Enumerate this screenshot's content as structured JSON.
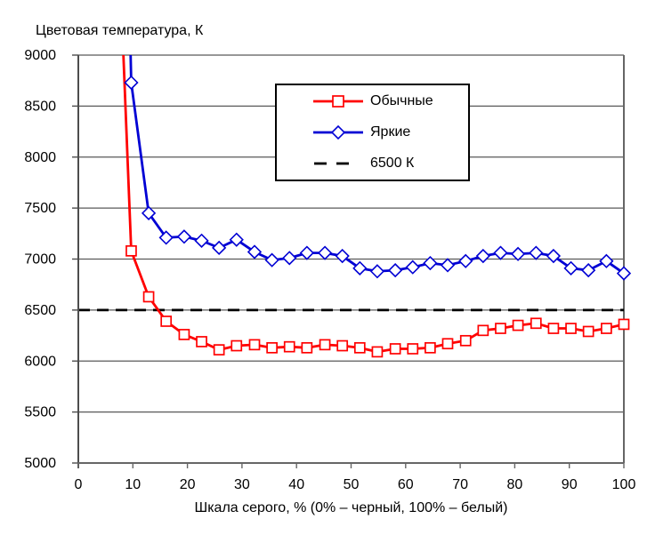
{
  "figure": {
    "background": "#ffffff",
    "text_color": "#000000"
  },
  "chart_data": {
    "type": "line",
    "title": "Цветовая температура, К",
    "xlabel": "Шкала серого, % (0% – черный, 100% – белый)",
    "ylabel": "",
    "xlim": [
      0,
      100
    ],
    "ylim": [
      5000,
      9000
    ],
    "x_ticks": [
      0,
      10,
      20,
      30,
      40,
      50,
      60,
      70,
      80,
      90,
      100
    ],
    "y_ticks": [
      5000,
      5500,
      6000,
      6500,
      7000,
      7500,
      8000,
      8500,
      9000
    ],
    "grid": "horizontal",
    "gridline_color": "#595959",
    "axis_color": "#666666",
    "legend_position": "top-center",
    "x": [
      9.7,
      12.9,
      16.1,
      19.4,
      22.6,
      25.8,
      29.0,
      32.3,
      35.5,
      38.7,
      41.9,
      45.2,
      48.4,
      51.6,
      54.8,
      58.1,
      61.3,
      64.5,
      67.7,
      71.0,
      74.2,
      77.4,
      80.6,
      83.9,
      87.1,
      90.3,
      93.5,
      96.8,
      100.0
    ],
    "series": [
      {
        "name": "Обычные",
        "color": "#ff0000",
        "marker": "square",
        "marker_fill": "#ffffff",
        "enters_from_above_at_x": 8.2,
        "values": [
          7080,
          6630,
          6390,
          6260,
          6190,
          6110,
          6150,
          6160,
          6130,
          6140,
          6130,
          6160,
          6150,
          6130,
          6090,
          6120,
          6120,
          6130,
          6170,
          6200,
          6300,
          6320,
          6350,
          6370,
          6320,
          6320,
          6290,
          6320,
          6360
        ]
      },
      {
        "name": "Яркие",
        "color": "#0000d4",
        "marker": "diamond",
        "marker_fill": "#ffffff",
        "enters_from_above_at_x": 9.55,
        "values": [
          8730,
          7450,
          7210,
          7220,
          7180,
          7110,
          7190,
          7070,
          6990,
          7010,
          7060,
          7060,
          7030,
          6910,
          6880,
          6890,
          6920,
          6960,
          6940,
          6980,
          7030,
          7060,
          7050,
          7060,
          7030,
          6910,
          6890,
          6980,
          6860
        ]
      }
    ],
    "reference_line": {
      "label": "6500 К",
      "value": 6500,
      "color": "#000000",
      "style": "dashed"
    }
  }
}
